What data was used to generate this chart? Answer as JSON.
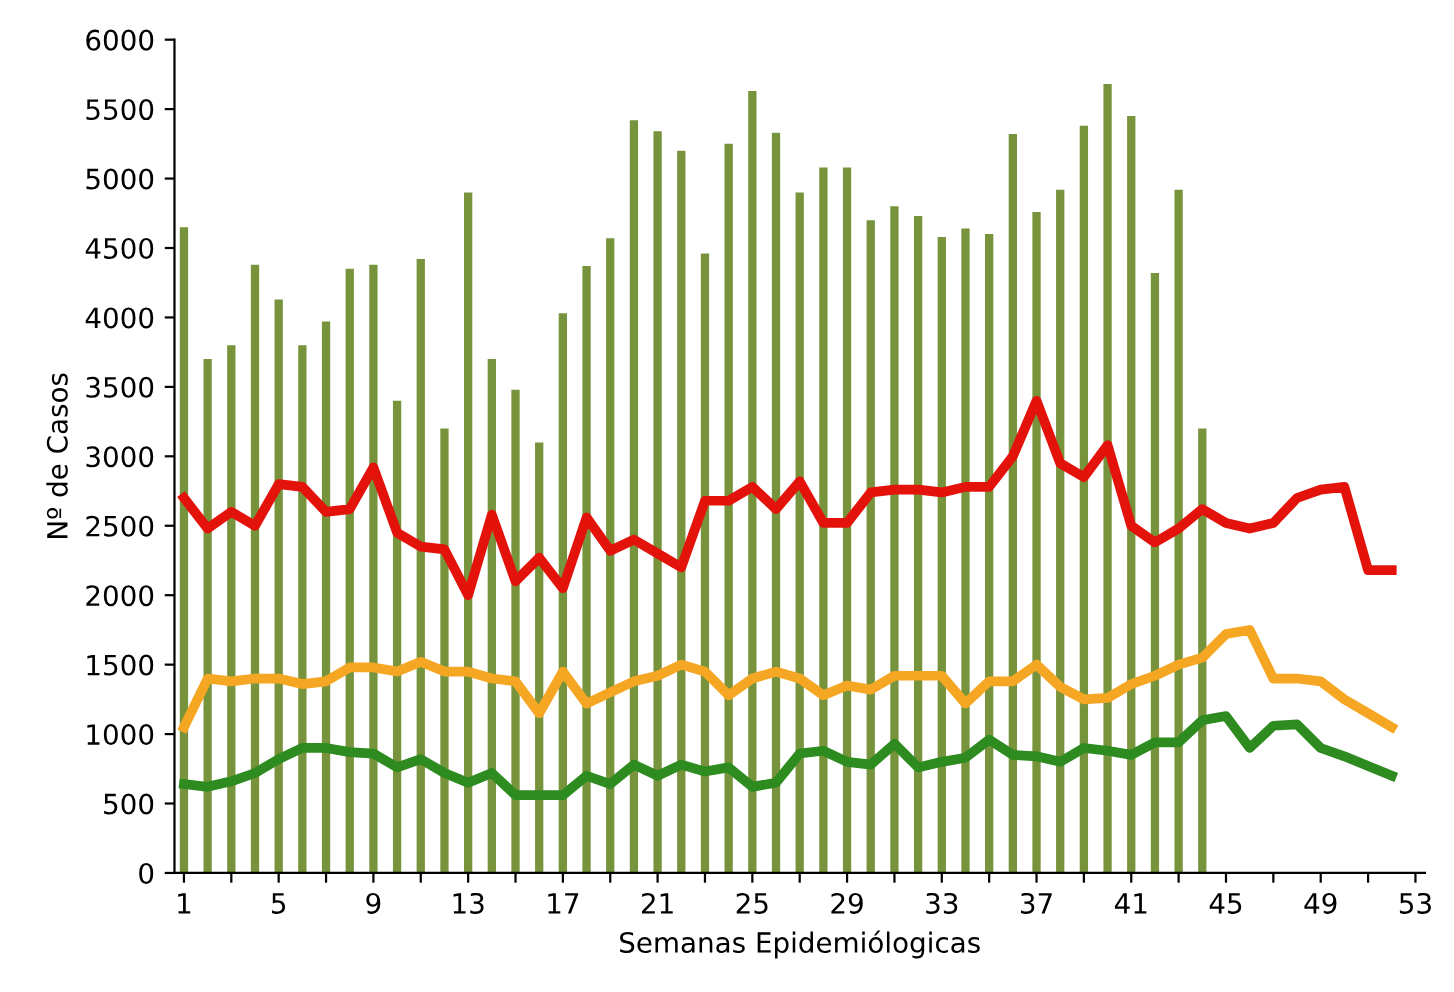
{
  "chart_data": {
    "type": "bar",
    "xlabel": "Semanas Epidemiólogicas",
    "ylabel": "Nº de Casos",
    "xlim": [
      0.6,
      53.4
    ],
    "ylim": [
      0,
      6000
    ],
    "xticks": [
      1,
      {
        "value": 3,
        "label": null
      },
      5,
      {
        "value": 7,
        "label": null
      },
      9,
      {
        "value": 11,
        "label": null
      },
      13,
      {
        "value": 15,
        "label": null
      },
      17,
      {
        "value": 19,
        "label": null
      },
      21,
      {
        "value": 23,
        "label": null
      },
      25,
      {
        "value": 27,
        "label": null
      },
      29,
      {
        "value": 31,
        "label": null
      },
      33,
      {
        "value": 35,
        "label": null
      },
      37,
      {
        "value": 39,
        "label": null
      },
      41,
      {
        "value": 43,
        "label": null
      },
      45,
      {
        "value": 47,
        "label": null
      },
      49,
      {
        "value": 51,
        "label": null
      },
      53
    ],
    "yticks": [
      0,
      500,
      1000,
      1500,
      2000,
      2500,
      3000,
      3500,
      4000,
      4500,
      5000,
      5500,
      6000
    ],
    "grid": false,
    "legend": false,
    "series": [
      {
        "color": "#77933c",
        "x": [
          1,
          2,
          3,
          4,
          5,
          6,
          7,
          8,
          9,
          10,
          11,
          12,
          13,
          14,
          15,
          16,
          17,
          18,
          19,
          20,
          21,
          22,
          23,
          24,
          25,
          26,
          27,
          28,
          29,
          30,
          31,
          32,
          33,
          34,
          35,
          36,
          37,
          38,
          39,
          40,
          41,
          42,
          43,
          44
        ],
        "values": [
          4650,
          3700,
          3800,
          4380,
          4130,
          3800,
          3970,
          4350,
          4380,
          3400,
          4420,
          3200,
          4900,
          3700,
          3480,
          3100,
          4030,
          4370,
          4570,
          5420,
          5340,
          5200,
          4460,
          5250,
          5630,
          5330,
          4900,
          5080,
          5080,
          4700,
          4800,
          4730,
          4580,
          4640,
          4600,
          5320,
          4760,
          4920,
          5380,
          5680,
          5450,
          4320,
          4920,
          3200
        ]
      },
      {
        "type": "line",
        "color": "#e3120b",
        "x": [
          1,
          2,
          3,
          4,
          5,
          6,
          7,
          8,
          9,
          10,
          11,
          12,
          13,
          14,
          15,
          16,
          17,
          18,
          19,
          20,
          21,
          22,
          23,
          24,
          25,
          26,
          27,
          28,
          29,
          30,
          31,
          32,
          33,
          34,
          35,
          36,
          37,
          38,
          39,
          40,
          41,
          42,
          43,
          44,
          45,
          46,
          47,
          48,
          49,
          50,
          51,
          52
        ],
        "values": [
          2700,
          2480,
          2600,
          2500,
          2800,
          2780,
          2600,
          2620,
          2920,
          2450,
          2350,
          2330,
          2000,
          2580,
          2100,
          2270,
          2050,
          2560,
          2320,
          2400,
          2300,
          2200,
          2680,
          2680,
          2780,
          2620,
          2820,
          2520,
          2520,
          2740,
          2760,
          2760,
          2740,
          2780,
          2780,
          3000,
          3400,
          2950,
          2850,
          3080,
          2500,
          2380,
          2480,
          2620,
          2520,
          2480,
          2520,
          2700,
          2760,
          2780,
          2180,
          2180
        ]
      },
      {
        "type": "line",
        "color": "#f5a623",
        "x": [
          1,
          2,
          3,
          4,
          5,
          6,
          7,
          8,
          9,
          10,
          11,
          12,
          13,
          14,
          15,
          16,
          17,
          18,
          19,
          20,
          21,
          22,
          23,
          24,
          25,
          26,
          27,
          28,
          29,
          30,
          31,
          32,
          33,
          34,
          35,
          36,
          37,
          38,
          39,
          40,
          41,
          42,
          43,
          44,
          45,
          46,
          47,
          48,
          49,
          50,
          51,
          52
        ],
        "values": [
          1050,
          1400,
          1380,
          1400,
          1400,
          1360,
          1380,
          1480,
          1480,
          1450,
          1520,
          1450,
          1450,
          1400,
          1380,
          1150,
          1450,
          1220,
          1300,
          1380,
          1420,
          1500,
          1450,
          1280,
          1400,
          1450,
          1400,
          1280,
          1350,
          1320,
          1420,
          1420,
          1420,
          1220,
          1380,
          1380,
          1500,
          1340,
          1250,
          1260,
          1360,
          1420,
          1500,
          1550,
          1720,
          1750,
          1400,
          1400,
          1380,
          1250,
          1150,
          1050
        ]
      },
      {
        "type": "line",
        "color": "#2e8b1f",
        "x": [
          1,
          2,
          3,
          4,
          5,
          6,
          7,
          8,
          9,
          10,
          11,
          12,
          13,
          14,
          15,
          16,
          17,
          18,
          19,
          20,
          21,
          22,
          23,
          24,
          25,
          26,
          27,
          28,
          29,
          30,
          31,
          32,
          33,
          34,
          35,
          36,
          37,
          38,
          39,
          40,
          41,
          42,
          43,
          44,
          45,
          46,
          47,
          48,
          49,
          50,
          51,
          52
        ],
        "values": [
          640,
          620,
          660,
          720,
          820,
          900,
          900,
          870,
          860,
          760,
          820,
          720,
          650,
          720,
          560,
          560,
          560,
          700,
          640,
          780,
          700,
          780,
          730,
          760,
          620,
          650,
          860,
          880,
          800,
          780,
          930,
          760,
          800,
          830,
          960,
          850,
          840,
          800,
          900,
          880,
          850,
          940,
          940,
          1100,
          1130,
          900,
          1060,
          1070,
          900,
          840,
          770,
          700
        ]
      }
    ]
  }
}
